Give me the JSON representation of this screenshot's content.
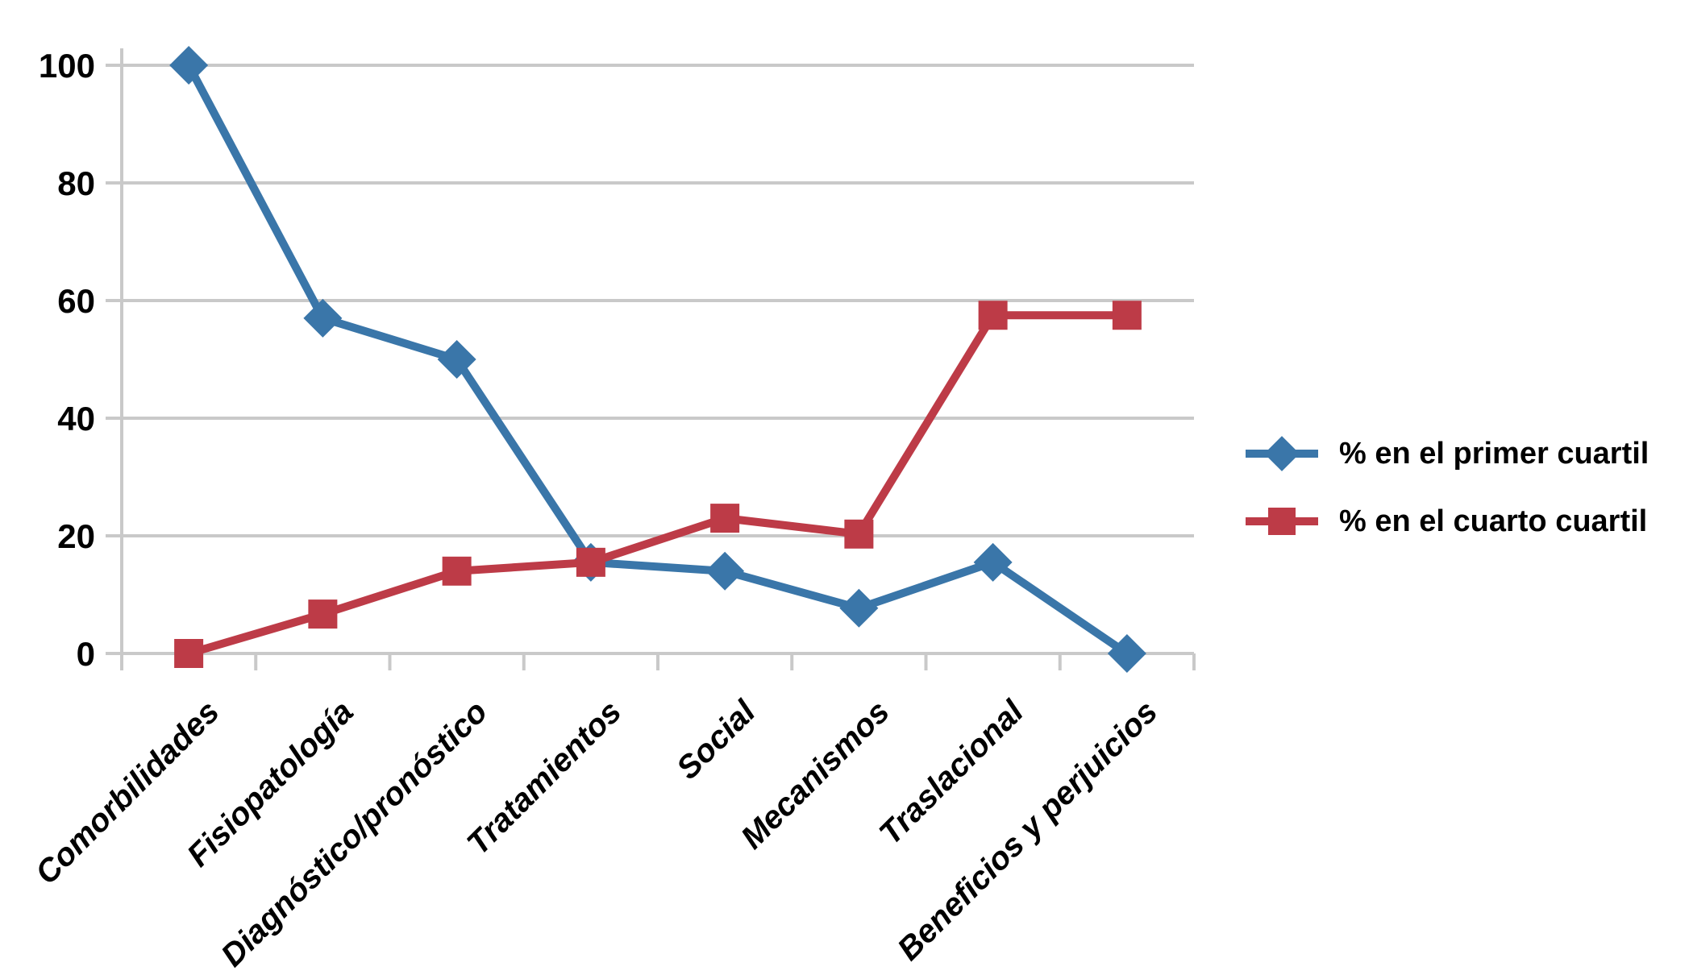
{
  "chart_data": {
    "type": "line",
    "categories": [
      "Comorbilidades",
      "Fisiopatología",
      "Diagnóstico/pronóstico",
      "Tratamientos",
      "Social",
      "Mecanismos",
      "Traslacional",
      "Beneficios y perjuicios"
    ],
    "series": [
      {
        "name": "% en el primer cuartil",
        "marker": "diamond",
        "color": "#3A76A9",
        "values": [
          100,
          57,
          50,
          15.5,
          14,
          7.7,
          15.5,
          0
        ]
      },
      {
        "name": "% en el cuarto cuartil",
        "marker": "square",
        "color": "#BD3B47",
        "values": [
          0,
          6.7,
          14,
          15.5,
          23,
          20.3,
          57.5,
          57.5
        ]
      }
    ],
    "title": "",
    "xlabel": "",
    "ylabel": "",
    "ylim": [
      0,
      100
    ],
    "yticks": [
      0,
      20,
      40,
      60,
      80,
      100
    ],
    "grid": true,
    "legend_position": "right"
  },
  "colors": {
    "gridline": "#C9C9C9",
    "axis": "#C9C9C9",
    "tick_text": "#000000",
    "background": "#FFFFFF"
  }
}
